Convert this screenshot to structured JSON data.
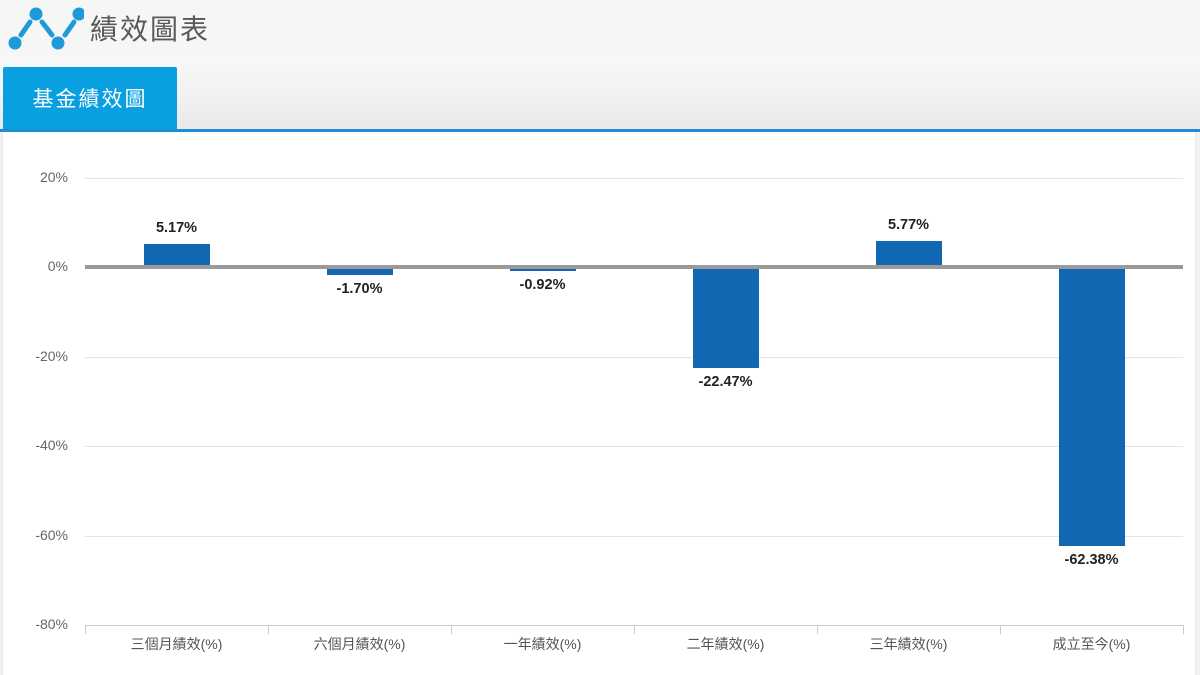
{
  "header": {
    "title": "績效圖表",
    "icon": "line-chart-icon"
  },
  "tabs": [
    {
      "label": "基金績效圖",
      "active": true
    }
  ],
  "colors": {
    "tab_blue": "#0a9fe0",
    "accent_line_blue": "#1d8ed2",
    "icon_blue": "#1f9ad8",
    "bar_blue": "#1267b2",
    "zero_line_gray": "#9a9a9a",
    "gridline_gray": "#e3e3e3",
    "value_text": "#222222",
    "axis_text": "#666666"
  },
  "chart_data": {
    "type": "bar",
    "title": "基金績效圖",
    "categories": [
      "三個月績效(%)",
      "六個月績效(%)",
      "一年績效(%)",
      "二年績效(%)",
      "三年績效(%)",
      "成立至今(%)"
    ],
    "values": [
      5.17,
      -1.7,
      -0.92,
      -22.47,
      5.77,
      -62.38
    ],
    "value_labels": [
      "5.17%",
      "-1.70%",
      "-0.92%",
      "-22.47%",
      "5.77%",
      "-62.38%"
    ],
    "xlabel": "",
    "ylabel": "",
    "ylim": [
      -80,
      20
    ],
    "yticks": [
      20,
      0,
      -20,
      -40,
      -60,
      -80
    ],
    "ytick_labels": [
      "20%",
      "0%",
      "-20%",
      "-40%",
      "-60%",
      "-80%"
    ],
    "grid": true,
    "legend": false,
    "bar_color": "#1267b2"
  }
}
